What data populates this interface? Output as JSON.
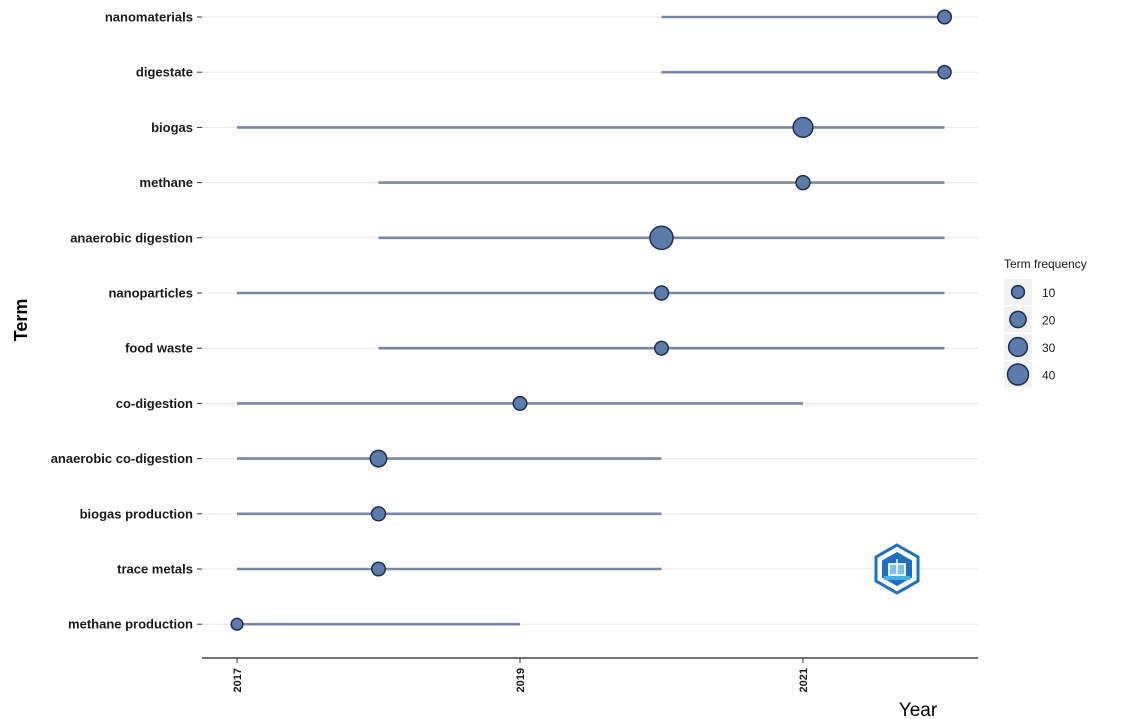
{
  "chart_data": {
    "type": "scatter",
    "xlabel": "Year",
    "ylabel": "Term",
    "x_ticks": [
      "2017",
      "2019",
      "2021"
    ],
    "xlim": [
      2016.75,
      2022.25
    ],
    "grid": "horizontal",
    "legend_placement": "right",
    "legend": {
      "title": "Term frequency",
      "entries": [
        {
          "label": "10",
          "value": 10
        },
        {
          "label": "20",
          "value": 20
        },
        {
          "label": "30",
          "value": 30
        },
        {
          "label": "40",
          "value": 40
        }
      ]
    },
    "colors": {
      "point_fill": "#5b7bab",
      "point_stroke": "#1f2f4f",
      "line": "#7b86a4",
      "grid": "#e6e6e6"
    },
    "terms": [
      {
        "term": "nanomaterials",
        "start": 2020.0,
        "end": 2022.0,
        "peak": 2022.0,
        "freq": 10
      },
      {
        "term": "digestate",
        "start": 2020.0,
        "end": 2022.0,
        "peak": 2022.0,
        "freq": 9
      },
      {
        "term": "biogas",
        "start": 2017.0,
        "end": 2022.0,
        "peak": 2021.0,
        "freq": 30
      },
      {
        "term": "methane",
        "start": 2018.0,
        "end": 2022.0,
        "peak": 2021.0,
        "freq": 11
      },
      {
        "term": "anaerobic digestion",
        "start": 2018.0,
        "end": 2022.0,
        "peak": 2020.0,
        "freq": 45
      },
      {
        "term": "nanoparticles",
        "start": 2017.0,
        "end": 2022.0,
        "peak": 2020.0,
        "freq": 11
      },
      {
        "term": "food waste",
        "start": 2018.0,
        "end": 2022.0,
        "peak": 2020.0,
        "freq": 10
      },
      {
        "term": "co-digestion",
        "start": 2017.0,
        "end": 2021.0,
        "peak": 2019.0,
        "freq": 10
      },
      {
        "term": "anaerobic co-digestion",
        "start": 2017.0,
        "end": 2020.0,
        "peak": 2018.0,
        "freq": 18
      },
      {
        "term": "biogas production",
        "start": 2017.0,
        "end": 2020.0,
        "peak": 2018.0,
        "freq": 11
      },
      {
        "term": "trace metals",
        "start": 2017.0,
        "end": 2020.0,
        "peak": 2018.0,
        "freq": 10
      },
      {
        "term": "methane production",
        "start": 2017.0,
        "end": 2019.0,
        "peak": 2017.0,
        "freq": 6
      }
    ]
  },
  "logo": {
    "name": "hexagon-logo-icon",
    "color": "#1e6fc0"
  }
}
